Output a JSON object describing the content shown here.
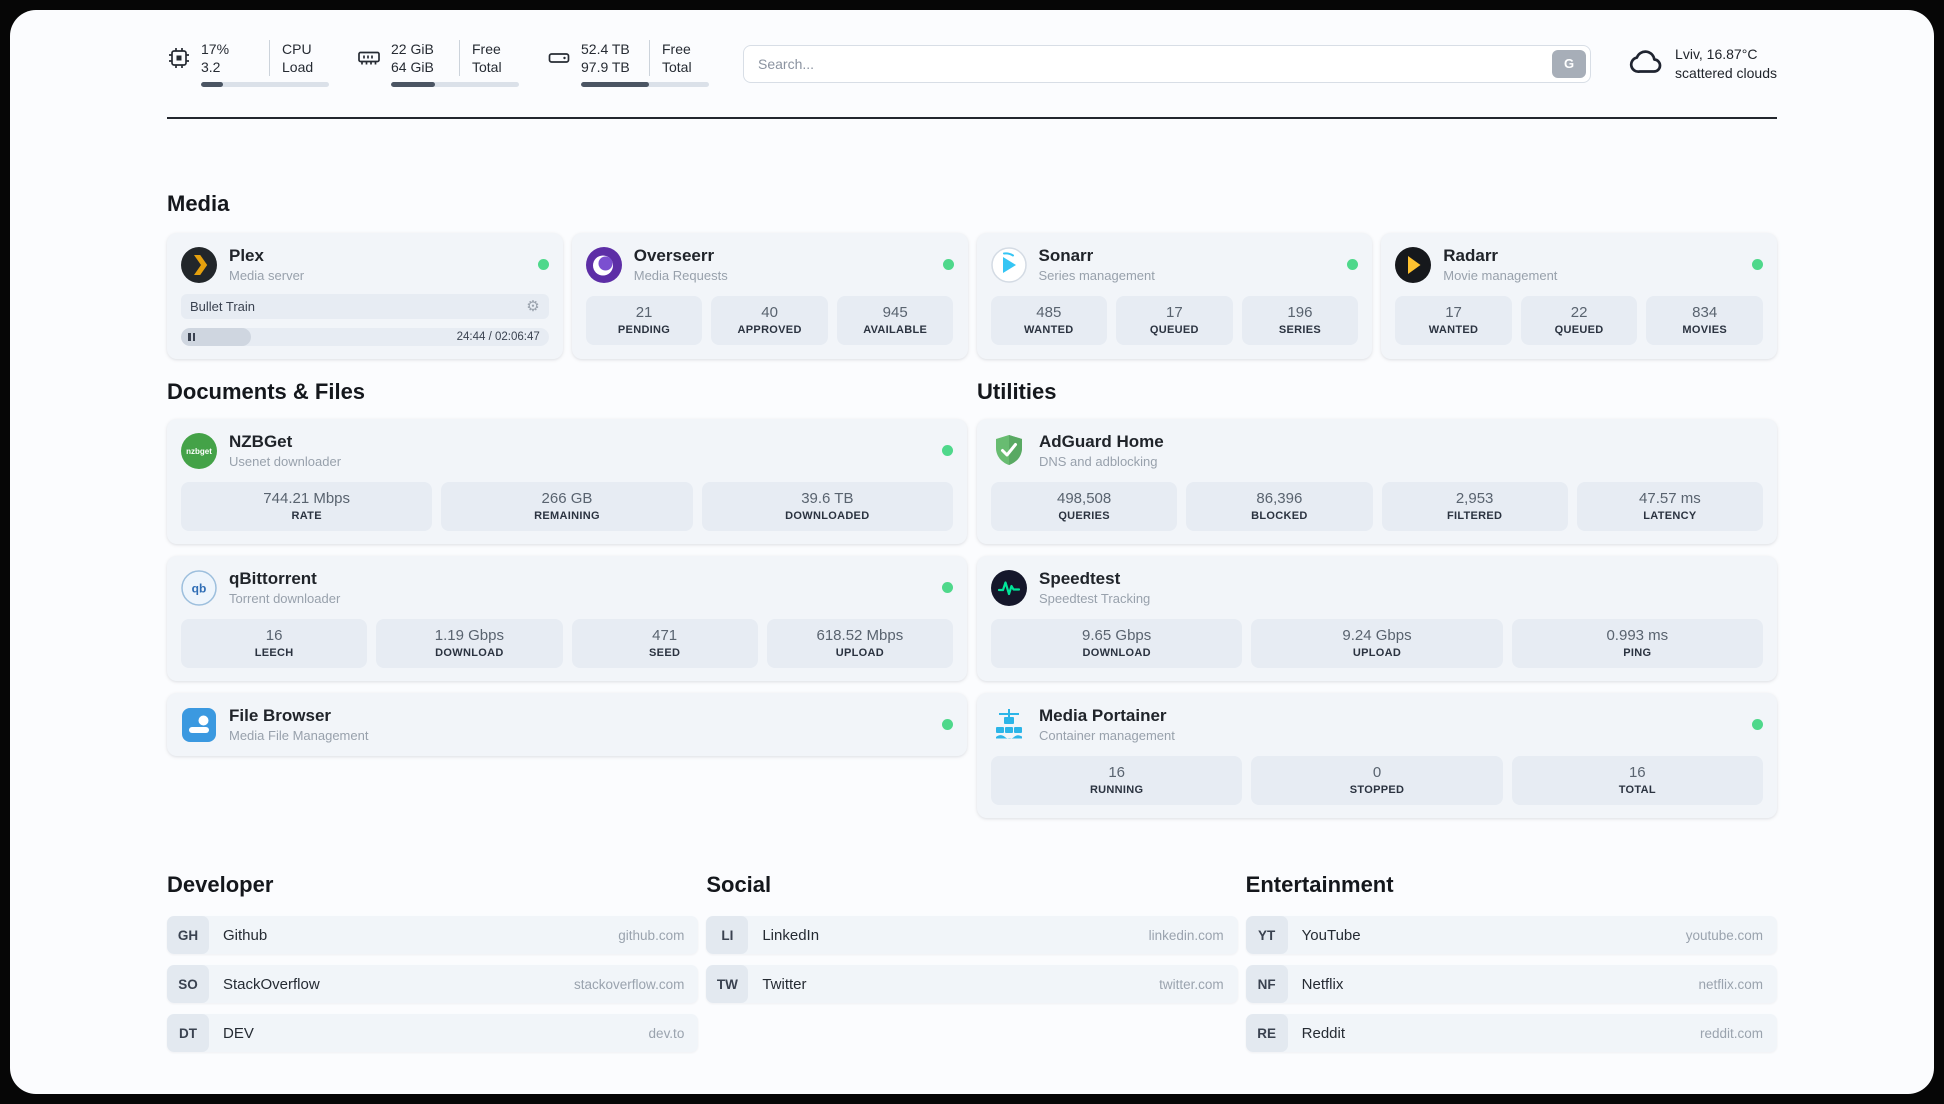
{
  "header": {
    "cpu": {
      "usage": "17%",
      "load": "3.2",
      "label_top": "CPU",
      "label_bottom": "Load",
      "progress": 17
    },
    "ram": {
      "free": "22 GiB",
      "total": "64 GiB",
      "label_top": "Free",
      "label_bottom": "Total",
      "progress": 34
    },
    "disk": {
      "free": "52.4 TB",
      "total": "97.9 TB",
      "label_top": "Free",
      "label_bottom": "Total",
      "progress": 53
    },
    "search": {
      "placeholder": "Search...",
      "button_label": "G"
    },
    "weather": {
      "location": "Lviv, 16.87°C",
      "condition": "scattered clouds"
    }
  },
  "media": {
    "title": "Media",
    "plex": {
      "name": "Plex",
      "subtitle": "Media server",
      "now_playing": "Bullet Train",
      "time": "24:44 / 02:06:47",
      "progress": 19
    },
    "overseerr": {
      "name": "Overseerr",
      "subtitle": "Media Requests",
      "stats": [
        {
          "value": "21",
          "label": "PENDING"
        },
        {
          "value": "40",
          "label": "APPROVED"
        },
        {
          "value": "945",
          "label": "AVAILABLE"
        }
      ]
    },
    "sonarr": {
      "name": "Sonarr",
      "subtitle": "Series management",
      "stats": [
        {
          "value": "485",
          "label": "WANTED"
        },
        {
          "value": "17",
          "label": "QUEUED"
        },
        {
          "value": "196",
          "label": "SERIES"
        }
      ]
    },
    "radarr": {
      "name": "Radarr",
      "subtitle": "Movie management",
      "stats": [
        {
          "value": "17",
          "label": "WANTED"
        },
        {
          "value": "22",
          "label": "QUEUED"
        },
        {
          "value": "834",
          "label": "MOVIES"
        }
      ]
    }
  },
  "documents": {
    "title": "Documents & Files",
    "nzbget": {
      "name": "NZBGet",
      "subtitle": "Usenet downloader",
      "icon_text": "nzbget",
      "stats": [
        {
          "value": "744.21 Mbps",
          "label": "RATE"
        },
        {
          "value": "266 GB",
          "label": "REMAINING"
        },
        {
          "value": "39.6 TB",
          "label": "DOWNLOADED"
        }
      ]
    },
    "qbittorrent": {
      "name": "qBittorrent",
      "subtitle": "Torrent downloader",
      "icon_text": "qb",
      "stats": [
        {
          "value": "16",
          "label": "LEECH"
        },
        {
          "value": "1.19 Gbps",
          "label": "DOWNLOAD"
        },
        {
          "value": "471",
          "label": "SEED"
        },
        {
          "value": "618.52 Mbps",
          "label": "UPLOAD"
        }
      ]
    },
    "filebrowser": {
      "name": "File Browser",
      "subtitle": "Media File Management"
    }
  },
  "utilities": {
    "title": "Utilities",
    "adguard": {
      "name": "AdGuard Home",
      "subtitle": "DNS and adblocking",
      "stats": [
        {
          "value": "498,508",
          "label": "QUERIES"
        },
        {
          "value": "86,396",
          "label": "BLOCKED"
        },
        {
          "value": "2,953",
          "label": "FILTERED"
        },
        {
          "value": "47.57 ms",
          "label": "LATENCY"
        }
      ]
    },
    "speedtest": {
      "name": "Speedtest",
      "subtitle": "Speedtest Tracking",
      "stats": [
        {
          "value": "9.65 Gbps",
          "label": "DOWNLOAD"
        },
        {
          "value": "9.24 Gbps",
          "label": "UPLOAD"
        },
        {
          "value": "0.993 ms",
          "label": "PING"
        }
      ]
    },
    "portainer": {
      "name": "Media Portainer",
      "subtitle": "Container management",
      "stats": [
        {
          "value": "16",
          "label": "RUNNING"
        },
        {
          "value": "0",
          "label": "STOPPED"
        },
        {
          "value": "16",
          "label": "TOTAL"
        }
      ]
    }
  },
  "links": {
    "developer": {
      "title": "Developer",
      "items": [
        {
          "abbr": "GH",
          "name": "Github",
          "url": "github.com"
        },
        {
          "abbr": "SO",
          "name": "StackOverflow",
          "url": "stackoverflow.com"
        },
        {
          "abbr": "DT",
          "name": "DEV",
          "url": "dev.to"
        }
      ]
    },
    "social": {
      "title": "Social",
      "items": [
        {
          "abbr": "LI",
          "name": "LinkedIn",
          "url": "linkedin.com"
        },
        {
          "abbr": "TW",
          "name": "Twitter",
          "url": "twitter.com"
        }
      ]
    },
    "entertainment": {
      "title": "Entertainment",
      "items": [
        {
          "abbr": "YT",
          "name": "YouTube",
          "url": "youtube.com"
        },
        {
          "abbr": "NF",
          "name": "Netflix",
          "url": "netflix.com"
        },
        {
          "abbr": "RE",
          "name": "Reddit",
          "url": "reddit.com"
        }
      ]
    }
  }
}
